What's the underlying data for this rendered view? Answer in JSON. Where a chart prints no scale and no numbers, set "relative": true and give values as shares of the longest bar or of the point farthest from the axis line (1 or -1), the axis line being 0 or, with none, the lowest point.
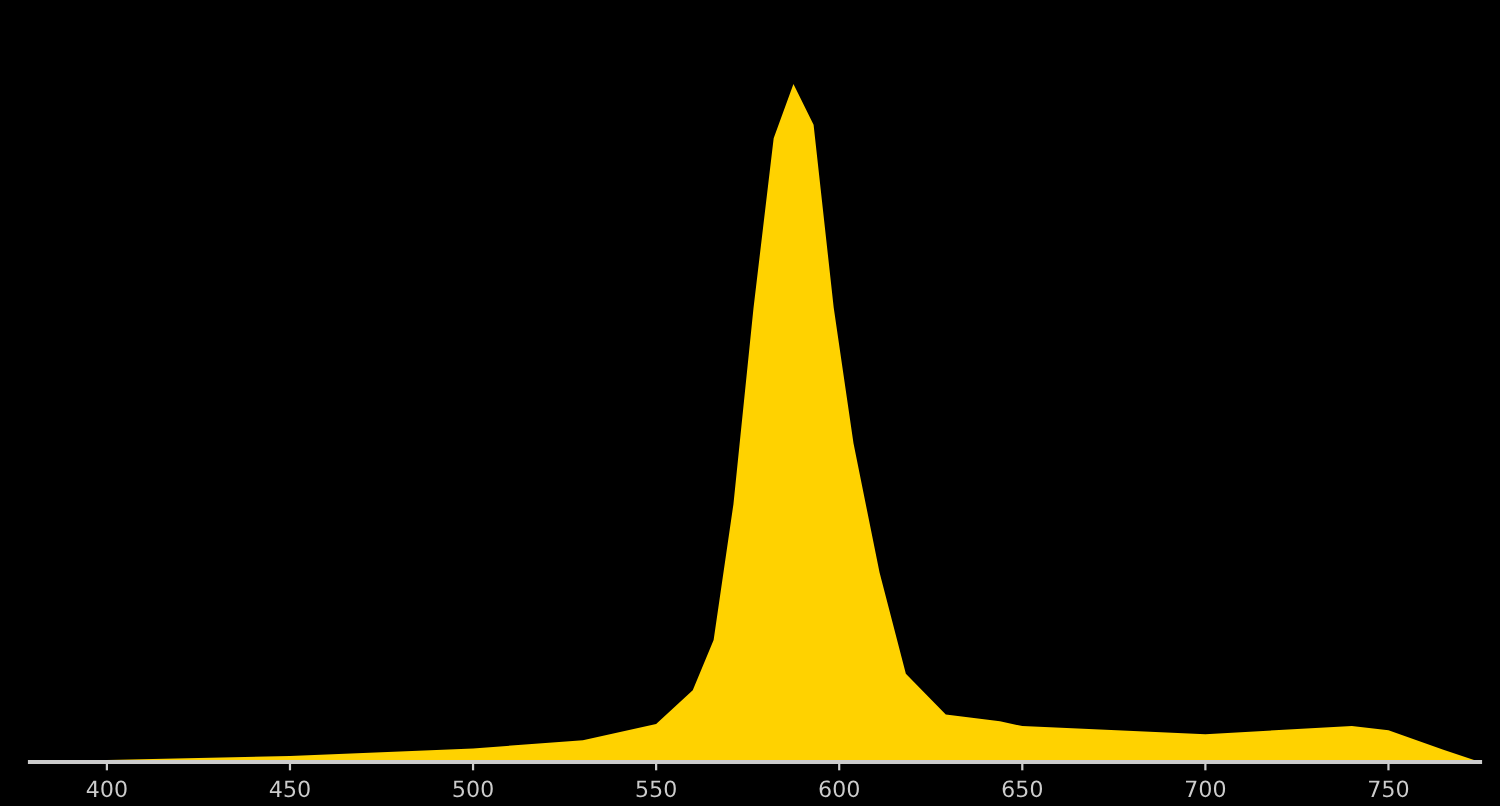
{
  "chart_data": {
    "type": "area",
    "relative": true,
    "color": "#ffd200",
    "x": [
      379,
      400,
      450,
      500,
      530,
      550,
      560,
      565.7,
      571.1,
      576.6,
      582.1,
      587.5,
      593,
      598.5,
      603.9,
      611,
      618.2,
      629.1,
      643.9,
      650,
      700,
      740,
      750,
      765,
      775
    ],
    "values": [
      0,
      0.003,
      0.009,
      0.02,
      0.032,
      0.056,
      0.106,
      0.18,
      0.38,
      0.67,
      0.92,
      1.0,
      0.94,
      0.67,
      0.47,
      0.28,
      0.13,
      0.07,
      0.06,
      0.053,
      0.041,
      0.053,
      0.047,
      0.018,
      0
    ],
    "xlim": [
      379,
      775
    ],
    "xticks": [
      400,
      450,
      500,
      550,
      600,
      650,
      700,
      750
    ],
    "grid": false
  }
}
